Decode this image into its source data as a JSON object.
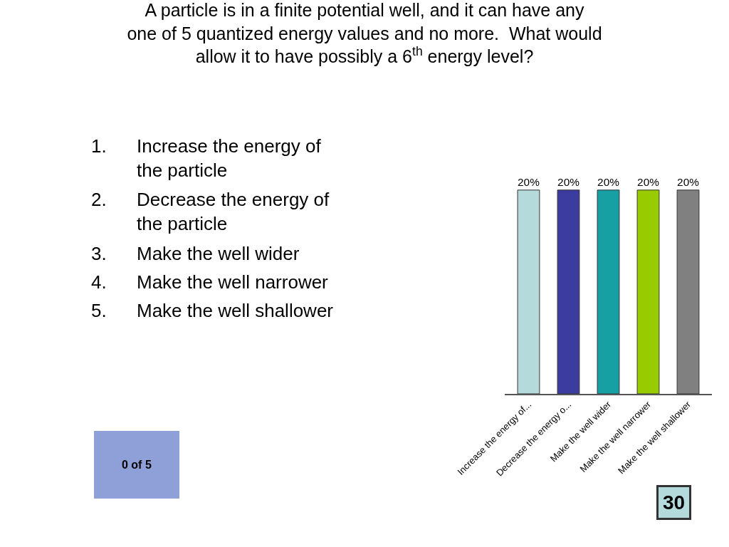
{
  "chart_data": {
    "type": "bar",
    "title": "A particle is in a finite potential well, and it can have any one of 5 quantized energy values and no more.  What would allow it to have possibly a 6$^{th}$ energy level?",
    "categories": [
      "Increase the energy of...",
      "Decrease the energy o...",
      "Make the well wider",
      "Make the well narrower",
      "Make the well shallower"
    ],
    "values": [
      20,
      20,
      20,
      20,
      20
    ],
    "colors": [
      "#b4dadc",
      "#3c3ca0",
      "#16a0a4",
      "#99cc00",
      "#808080"
    ],
    "value_labels": [
      "20%",
      "20%",
      "20%",
      "20%",
      "20%"
    ],
    "annotations": [
      "1.  Increase the energy of the particle",
      "2.  Decrease the energy of the particle",
      "3.  Make the well wider",
      "4.  Make the well narrower",
      "5.  Make the well shallower",
      "0 of 5",
      "30"
    ]
  }
}
